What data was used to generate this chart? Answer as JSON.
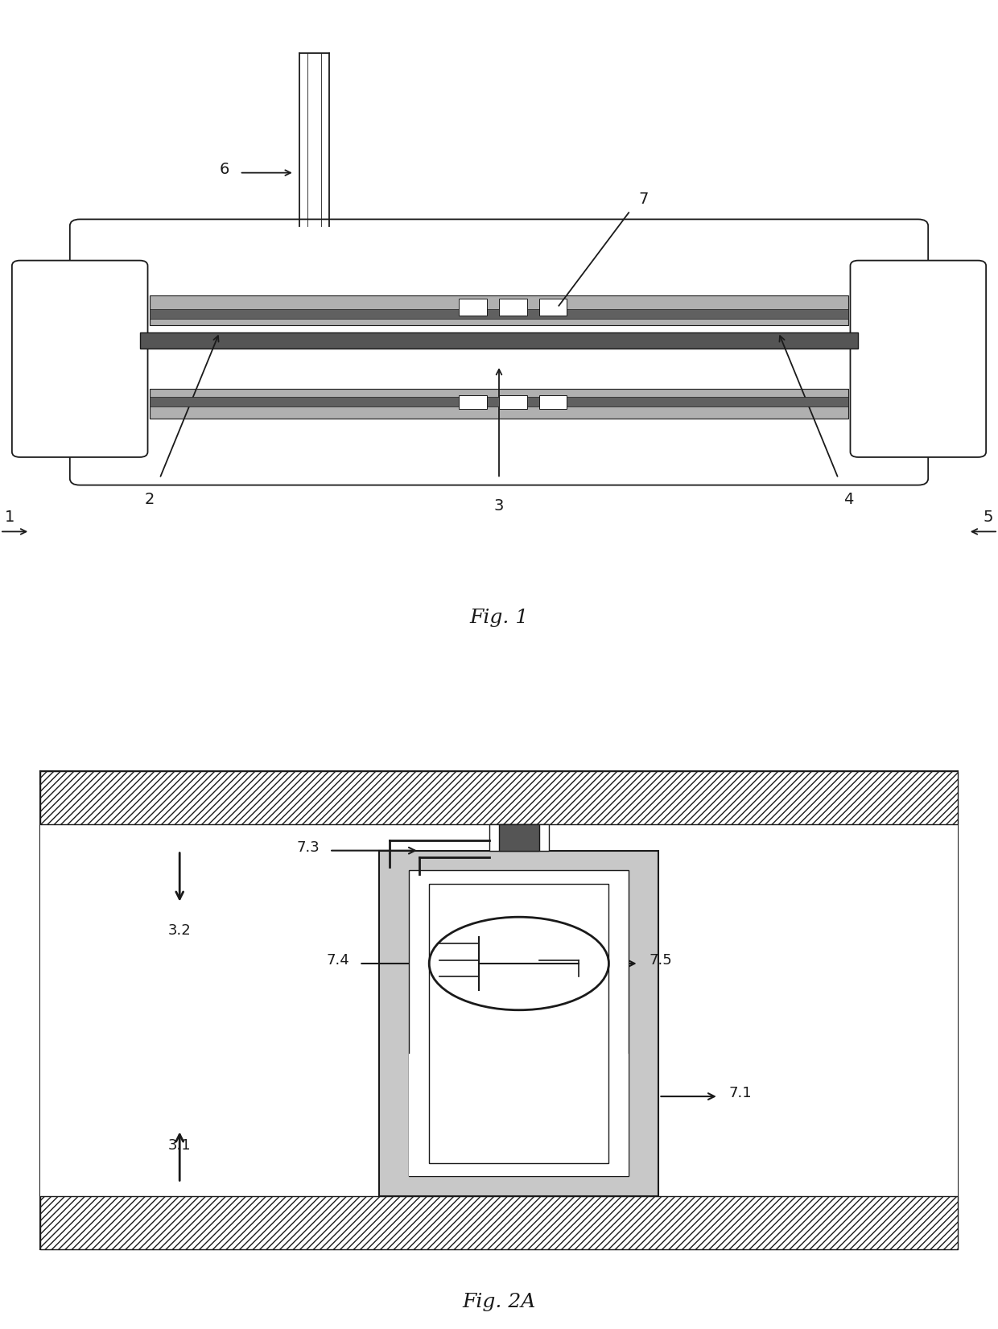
{
  "fig_width": 12.4,
  "fig_height": 16.51,
  "bg_color": "#ffffff",
  "lc": "#1a1a1a",
  "fig1_label": "Fig. 1",
  "fig2_label": "Fig. 2A"
}
